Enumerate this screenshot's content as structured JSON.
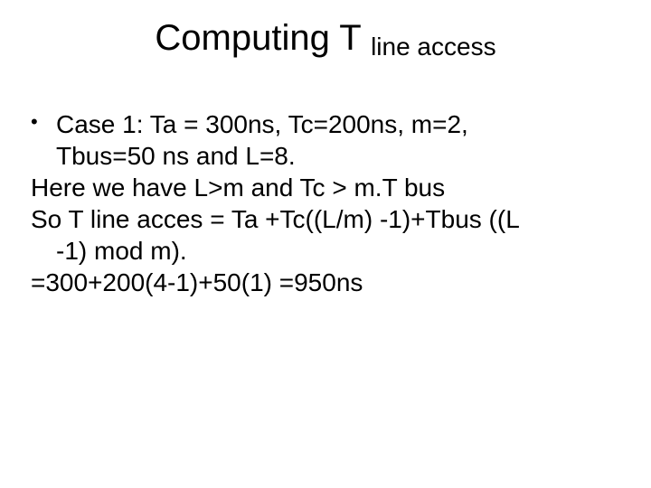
{
  "title": {
    "main": "Computing T ",
    "sub": "line access"
  },
  "body": {
    "bullet1_line1": "Case 1: Ta = 300ns, Tc=200ns, m=2,",
    "bullet1_line2": "Tbus=50 ns and L=8.",
    "line3": "Here we have L>m and Tc > m.T bus",
    "line4": "So T line acces = Ta +Tc((L/m) -1)+Tbus ((L",
    "line5": "-1) mod m).",
    "line6": "=300+200(4-1)+50(1) =950ns"
  },
  "style": {
    "background": "#ffffff",
    "text_color": "#000000",
    "title_fontsize": 40,
    "title_sub_fontsize": 28,
    "body_fontsize": 28,
    "font_family": "Arial"
  }
}
